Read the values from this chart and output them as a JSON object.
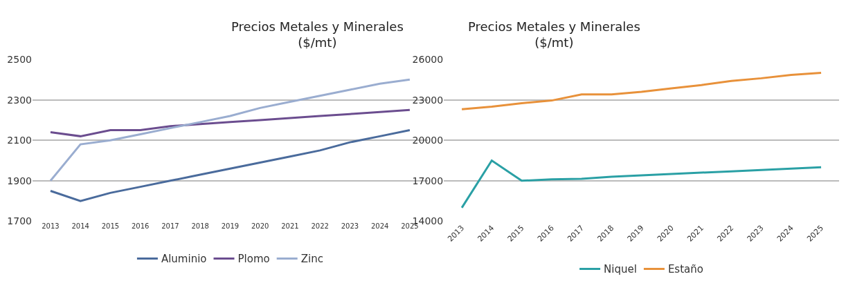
{
  "chart_data": [
    {
      "type": "line",
      "title": "Precios Metales y Minerales\n($/mt)",
      "categories": [
        "2013",
        "2014",
        "2015",
        "2016",
        "2017",
        "2018",
        "2019",
        "2020",
        "2021",
        "2022",
        "2023",
        "2024",
        "2025"
      ],
      "series": [
        {
          "name": "Aluminio",
          "color": "#4a6b9c",
          "values": [
            1850,
            1800,
            1840,
            1870,
            1900,
            1930,
            1960,
            1990,
            2020,
            2050,
            2090,
            2120,
            2150
          ]
        },
        {
          "name": "Plomo",
          "color": "#6b4d8f",
          "values": [
            2140,
            2120,
            2150,
            2150,
            2170,
            2180,
            2190,
            2200,
            2210,
            2220,
            2230,
            2240,
            2250
          ]
        },
        {
          "name": "Zinc",
          "color": "#9aadd0",
          "values": [
            1900,
            2080,
            2100,
            2130,
            2160,
            2190,
            2220,
            2260,
            2290,
            2320,
            2350,
            2380,
            2400
          ]
        }
      ],
      "ylim": [
        1700,
        2500
      ],
      "yticks": [
        1700,
        1900,
        2100,
        2300,
        2500
      ],
      "grid": "y",
      "legend": "bottom",
      "marker": "none",
      "line_style": "solid"
    },
    {
      "type": "line",
      "title": "Precios Metales y Minerales\n($/mt)",
      "categories": [
        "2013",
        "2014",
        "2015",
        "2016",
        "2017",
        "2018",
        "2019",
        "2020",
        "2021",
        "2022",
        "2023",
        "2024",
        "2025"
      ],
      "series": [
        {
          "name": "Niquel",
          "color": "#2aa0a5",
          "values": [
            15000,
            18500,
            17000,
            17100,
            17150,
            17300,
            17400,
            17500,
            17600,
            17700,
            17800,
            17900,
            18000
          ]
        },
        {
          "name": "Estaño",
          "color": "#e8913a",
          "values": [
            22300,
            22500,
            22750,
            22950,
            23400,
            23400,
            23600,
            23850,
            24100,
            24400,
            24600,
            24850,
            25000
          ]
        }
      ],
      "ylim": [
        14000,
        26000
      ],
      "yticks": [
        14000,
        17000,
        20000,
        23000,
        26000
      ],
      "grid": "y",
      "legend": "bottom",
      "marker": "none",
      "line_style": "solid"
    }
  ]
}
